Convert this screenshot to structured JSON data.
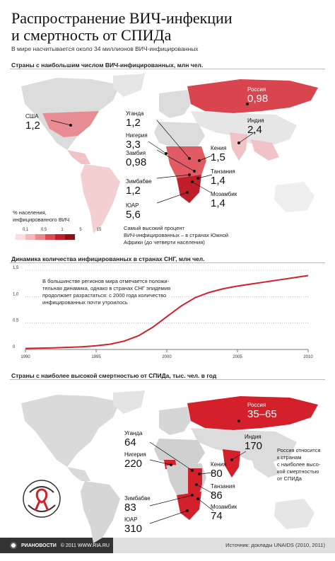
{
  "header": {
    "title_line1": "Распространение ВИЧ-инфекции",
    "title_line2": "и смертность от СПИДа",
    "subtitle": "В мире насчитывается около 34 миллионов ВИЧ-инфицированных"
  },
  "map1": {
    "title": "Страны с наибольшим числом ВИЧ-инфицированных, млн чел.",
    "countries": [
      {
        "name": "Россия",
        "value": "0,98"
      },
      {
        "name": "США",
        "value": "1,2"
      },
      {
        "name": "Уганда",
        "value": "1,2"
      },
      {
        "name": "Индия",
        "value": "2,4"
      },
      {
        "name": "Нигерия",
        "value": "3,3"
      },
      {
        "name": "Кения",
        "value": "1,5"
      },
      {
        "name": "Замбия",
        "value": "0,98"
      },
      {
        "name": "Танзания",
        "value": "1,4"
      },
      {
        "name": "Зимбабве",
        "value": "1,2"
      },
      {
        "name": "Мозамбик",
        "value": "1,4"
      },
      {
        "name": "ЮАР",
        "value": "5,6"
      }
    ],
    "legend_title_1": "% населения,",
    "legend_title_2": "инфицированного ВИЧ",
    "legend_values": [
      "0,1",
      "0,5",
      "1",
      "5",
      "15"
    ],
    "legend_colors": [
      "#f9dfe0",
      "#f3b8bb",
      "#ea8a8f",
      "#dc4c55",
      "#c01e2a"
    ],
    "note_1": "Самый высокий процент",
    "note_2": "ВИЧ-инфицированных – в странах Южной",
    "note_3": "Африки (до четверти населения)"
  },
  "chart_data": {
    "type": "line",
    "title": "Динамика количества инфицированных в странах СНГ, млн чел.",
    "x": [
      1990,
      1992,
      1994,
      1995,
      1996,
      1997,
      1998,
      1999,
      2000,
      2001,
      2002,
      2003,
      2004,
      2005,
      2006,
      2007,
      2008,
      2009,
      2010
    ],
    "series": [
      {
        "values": [
          0.02,
          0.03,
          0.05,
          0.07,
          0.1,
          0.16,
          0.26,
          0.42,
          0.62,
          0.82,
          0.98,
          1.08,
          1.15,
          1.2,
          1.24,
          1.28,
          1.32,
          1.36,
          1.4
        ]
      }
    ],
    "xticks": [
      "1990",
      "1995",
      "2000",
      "2005",
      "2010"
    ],
    "yticks": [
      "0",
      "0,5",
      "1,0",
      "1,5"
    ],
    "xlim": [
      1990,
      2010
    ],
    "ylim": [
      0,
      1.5
    ],
    "annotation_1": "В большинстве регионов мира отмечается положи-",
    "annotation_2": "тельная динамика, однако в странах СНГ эпидемия",
    "annotation_3": "продолжает разрастаться: с 2000 года количество",
    "annotation_4": "инфицированных почти утроилось",
    "line_color": "#d4202a",
    "grid": "dotted horizontal"
  },
  "map2": {
    "title": "Страны с наиболее высокой смертностью от СПИДа, тыс. чел. в год",
    "countries": [
      {
        "name": "Россия",
        "value": "35–65"
      },
      {
        "name": "Индия",
        "value": "170"
      },
      {
        "name": "Уганда",
        "value": "64"
      },
      {
        "name": "Нигерия",
        "value": "220"
      },
      {
        "name": "Кения",
        "value": "80"
      },
      {
        "name": "Танзания",
        "value": "86"
      },
      {
        "name": "Зимбабве",
        "value": "83"
      },
      {
        "name": "Мозамбик",
        "value": "74"
      },
      {
        "name": "ЮАР",
        "value": "310"
      }
    ],
    "note_1": "Россия относится",
    "note_2": "к странам",
    "note_3": "с наиболее высо-",
    "note_4": "кой смертностью",
    "note_5": "от СПИДа"
  },
  "footer": {
    "brand": "РИАНОВОСТИ",
    "copyright": "© 2011 WWW.RIA.RU",
    "source": "Источник: доклады UNAIDS (2010, 2011)"
  },
  "colors": {
    "accent": "#d4202a",
    "land": "#d9d9d9",
    "water": "#ffffff"
  }
}
